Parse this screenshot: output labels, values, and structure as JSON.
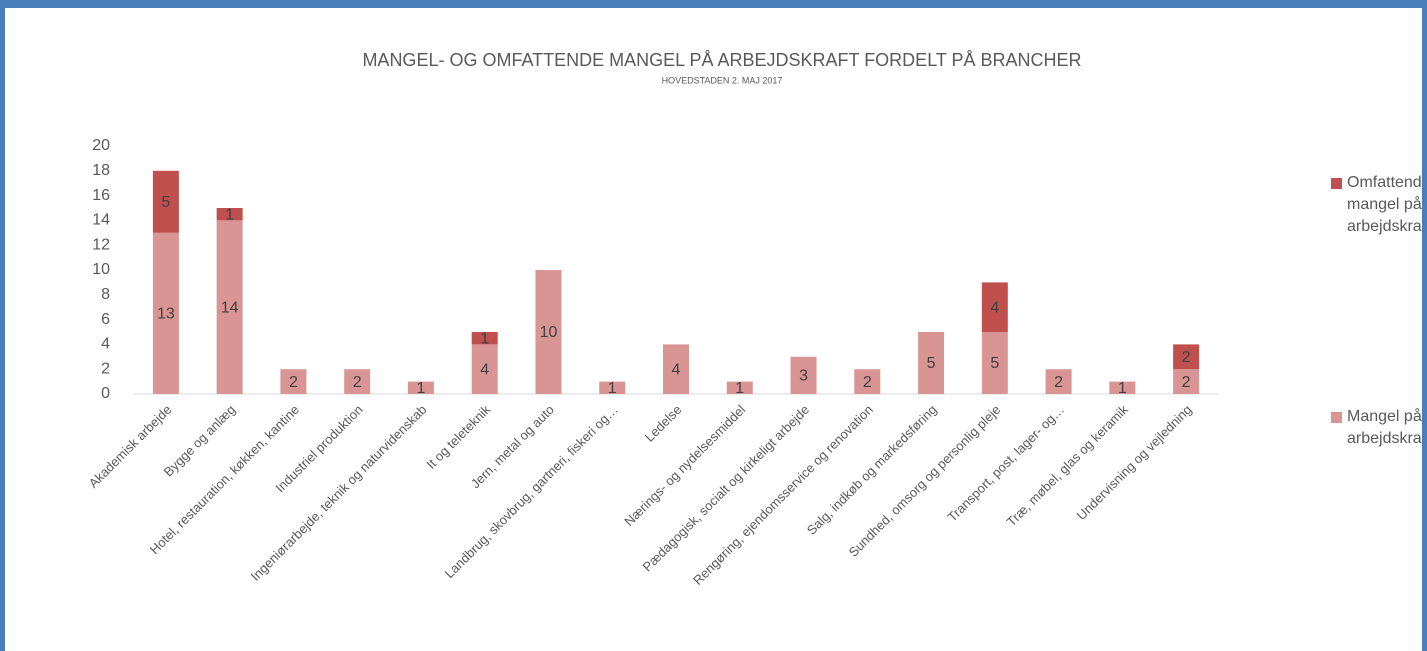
{
  "chart_data": {
    "type": "stacked_bar",
    "title": "MANGEL- OG OMFATTENDE MANGEL PÅ ARBEJDSKRAFT FORDELT PÅ BRANCHER",
    "subtitle": "HOVEDSTADEN 2. MAJ 2017",
    "categories": [
      "Akademisk arbejde",
      "Bygge og anlæg",
      "Hotel, restauration, køkken, kantine",
      "Industriel produktion",
      "Ingeniørarbejde, teknik og naturvidenskab",
      "It og teleteknik",
      "Jern, metal og auto",
      "Landbrug, skovbrug, gartneri, fiskeri og…",
      "Ledelse",
      "Nærings- og nydelsesmiddel",
      "Pædagogisk, socialt og kirkeligt arbejde",
      "Rengøring, ejendomsservice og renovation",
      "Salg, indkøb og markedsføring",
      "Sundhed, omsorg og personlig pleje",
      "Transport, post, lager- og…",
      "Træ, møbel, glas og keramik",
      "Undervisning og vejledning"
    ],
    "series": [
      {
        "name": "Mangel på arbejdskraft",
        "color": "#d99594",
        "values": [
          13,
          14,
          2,
          2,
          1,
          4,
          10,
          1,
          4,
          1,
          3,
          2,
          5,
          5,
          2,
          1,
          2
        ]
      },
      {
        "name": "Omfattende mangel på arbejdskraft",
        "color": "#c0504d",
        "values": [
          5,
          1,
          null,
          null,
          null,
          1,
          null,
          null,
          null,
          null,
          null,
          null,
          null,
          4,
          null,
          null,
          2
        ]
      }
    ],
    "ylim": [
      0,
      20
    ],
    "yticks": [
      0,
      2,
      4,
      6,
      8,
      10,
      12,
      14,
      16,
      18,
      20
    ],
    "grid": false,
    "legend": "right"
  }
}
